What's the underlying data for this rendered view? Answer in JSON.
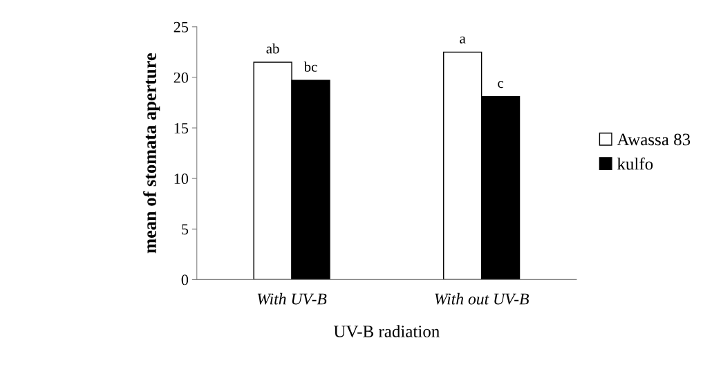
{
  "chart_data": {
    "type": "bar",
    "xlabel": "UV-B radiation",
    "ylabel": "mean of stomata aperture",
    "categories": [
      "With UV-B",
      "With out UV-B"
    ],
    "series": [
      {
        "name": "Awassa 83",
        "color": "#ffffff",
        "values": [
          21.5,
          22.5
        ],
        "value_labels": [
          "ab",
          "a"
        ]
      },
      {
        "name": "kulfo",
        "color": "#000000",
        "values": [
          19.7,
          18.1
        ],
        "value_labels": [
          "bc",
          "c"
        ]
      }
    ],
    "ylim": [
      0,
      25
    ],
    "yticks": [
      0,
      5,
      10,
      15,
      20,
      25
    ],
    "grid": false,
    "legend": "right"
  }
}
